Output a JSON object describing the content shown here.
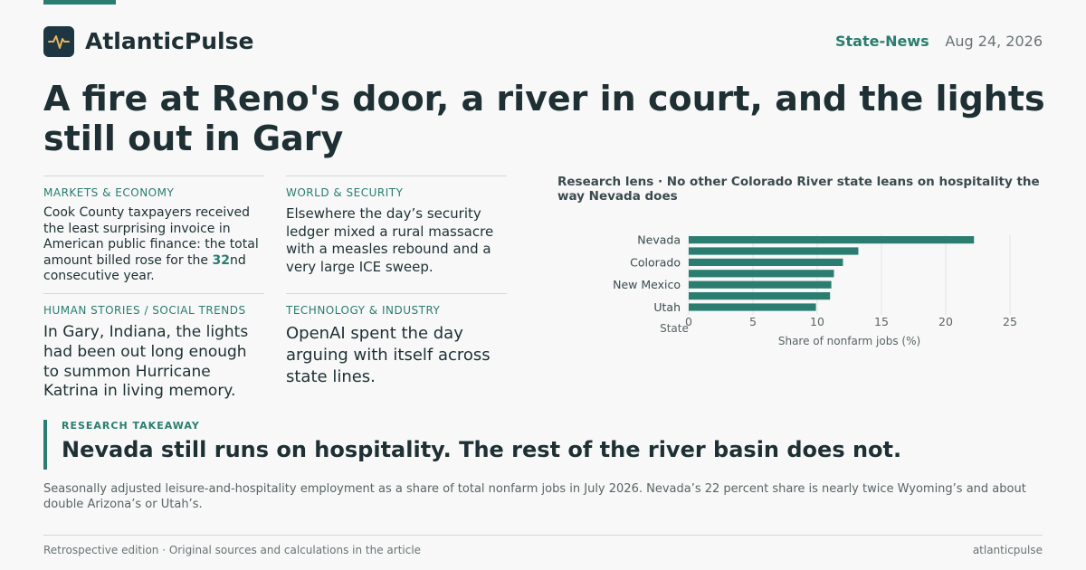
{
  "header": {
    "brand": "AtlanticPulse",
    "section": "State-News",
    "date": "Aug 24, 2026"
  },
  "headline": "A fire at Reno's door, a river in court, and the lights still out in Gary",
  "stories": [
    {
      "tag": "MARKETS & ECONOMY",
      "body_before": "Cook County taxpayers received the least surprising invoice in American public finance: the total amount billed rose for the ",
      "body_highlight": "32",
      "body_after": "nd consecutive year."
    },
    {
      "tag": "WORLD & SECURITY",
      "body": "Elsewhere the day’s security ledger mixed a rural massacre with a measles rebound and a very large ICE sweep."
    },
    {
      "tag": "HUMAN STORIES / SOCIAL TRENDS",
      "body": "In Gary, Indiana, the lights had been out long enough to summon Hurricane Katrina in living memory."
    },
    {
      "tag": "TECHNOLOGY & INDUSTRY",
      "body": "OpenAI spent the day arguing with itself across state lines."
    }
  ],
  "chart_data": {
    "type": "bar",
    "orientation": "horizontal",
    "title": "Research lens · No other Colorado River state leans on hospitality the way Nevada does",
    "categories": [
      "Nevada",
      "",
      "Colorado",
      "",
      "New Mexico",
      "",
      "Utah"
    ],
    "values": [
      22.2,
      13.2,
      12.0,
      11.3,
      11.1,
      11.0,
      9.9
    ],
    "xlabel": "Share of nonfarm jobs (%)",
    "ylabel": "State",
    "xlim": [
      0,
      25
    ],
    "xticks": [
      "0",
      "5",
      "10",
      "15",
      "20",
      "25"
    ],
    "grid": true,
    "bar_color": "#2a7d70"
  },
  "takeaway": {
    "label": "RESEARCH TAKEAWAY",
    "text": "Nevada still runs on hospitality. The rest of the river basin does not."
  },
  "caption": "Seasonally adjusted leisure-and-hospitality employment as a share of total nonfarm jobs in July 2026. Nevada’s 22 percent share is nearly twice Wyoming’s and about double Arizona’s or Utah’s.",
  "footer": {
    "left": "Retrospective edition · Original sources and calculations in the article",
    "right": "atlanticpulse"
  },
  "icons": {
    "logo": "pulse-icon",
    "accent": "#2a7d70"
  }
}
